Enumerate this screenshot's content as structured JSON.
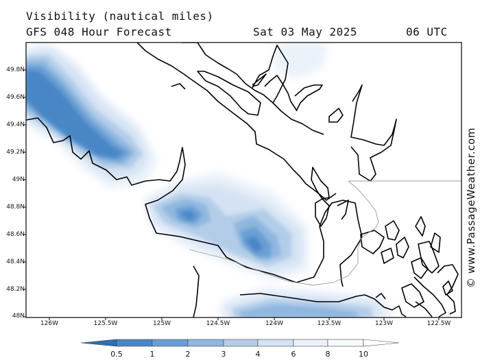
{
  "title": {
    "line1": "Visibility (nautical miles)",
    "line2": "GFS 048 Hour Forecast",
    "date": "Sat 03 May 2025",
    "time": "06 UTC"
  },
  "watermark": "© www.PassageWeather.com",
  "lat_labels": [
    "49.8N",
    "49.6N",
    "49.4N",
    "49.2N",
    "49N",
    "48.8N",
    "48.6N",
    "48.4N",
    "48.2N",
    "48N"
  ],
  "lon_labels": [
    "126W",
    "125.5W",
    "125W",
    "124.5W",
    "124W",
    "123.5W",
    "123W",
    "122.5W"
  ],
  "colorbar": {
    "labels": [
      "0.5",
      "1",
      "2",
      "3",
      "4",
      "6",
      "8",
      "10"
    ],
    "colors": [
      "#2e6db3",
      "#4a86c6",
      "#6a9fd4",
      "#8fb7df",
      "#b3cde9",
      "#d4e2f3",
      "#ebf2fa",
      "#f7fafd"
    ]
  }
}
